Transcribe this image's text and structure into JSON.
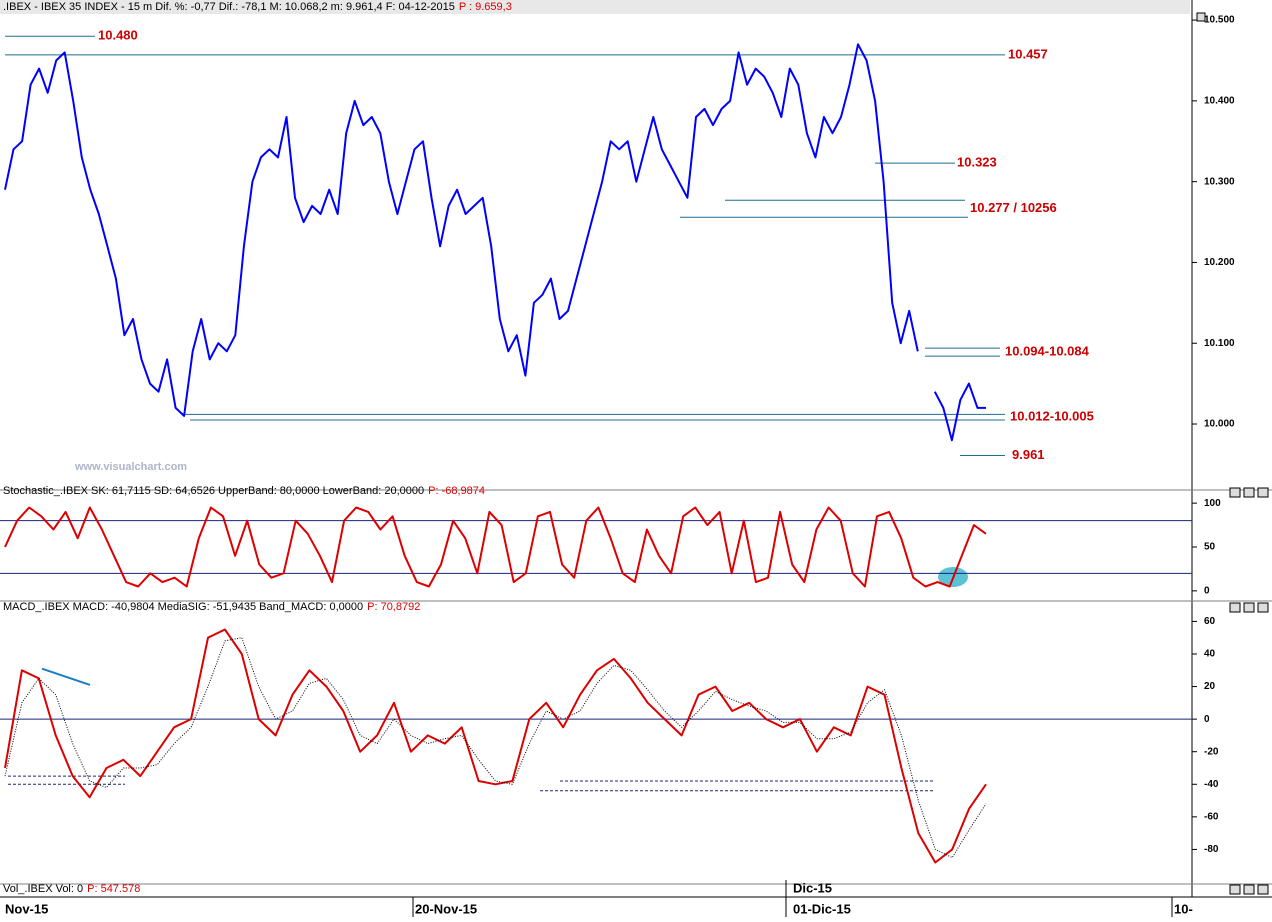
{
  "chart_data": [
    {
      "type": "line",
      "title": ".IBEX - IBEX 35 INDEX - 15 m  Dif. %: -0,77  Dif.: -78,1  M: 10.068,2  m: 9.961,4  F: 04-12-2015",
      "title_value": "P : 9.659,3",
      "ylim": [
        9927,
        10510
      ],
      "yticks": [
        {
          "value": 10000,
          "label": "10.000"
        },
        {
          "value": 10100,
          "label": "10.100"
        },
        {
          "value": 10200,
          "label": "10.200"
        },
        {
          "value": 10300,
          "label": "10.300"
        },
        {
          "value": 10400,
          "label": "10.400"
        },
        {
          "value": 10500,
          "label": "10.500"
        }
      ],
      "series": [
        {
          "color": "#0000ff",
          "values": [
            10290,
            10340,
            10350,
            10420,
            10440,
            10410,
            10450,
            10460,
            10400,
            10330,
            10290,
            10260,
            10220,
            10180,
            10110,
            10130,
            10080,
            10050,
            10040,
            10080,
            10020,
            10010,
            10090,
            10130,
            10080,
            10100,
            10090,
            10110,
            10220,
            10300,
            10330,
            10340,
            10330,
            10380,
            10280,
            10250,
            10270,
            10260,
            10290,
            10260,
            10360,
            10400,
            10370,
            10380,
            10360,
            10300,
            10260,
            10300,
            10340,
            10350,
            10280,
            10220,
            10270,
            10290,
            10260,
            10270,
            10280,
            10220,
            10130,
            10090,
            10110,
            10060,
            10150,
            10160,
            10180,
            10130,
            10140,
            10180,
            10220,
            10260,
            10300,
            10350,
            10340,
            10350,
            10300,
            10340,
            10380,
            10340,
            10320,
            10300,
            10280,
            10380,
            10390,
            10370,
            10390,
            10400,
            10460,
            10420,
            10440,
            10430,
            10410,
            10380,
            10440,
            10420,
            10360,
            10330,
            10380,
            10360,
            10380,
            10420,
            10470,
            10450,
            10400,
            10300,
            10150,
            10100,
            10140,
            10090,
            null,
            10040,
            10020,
            9980,
            10030,
            10050,
            10020,
            10020
          ]
        }
      ],
      "annotations": [
        {
          "label": "10.480",
          "values": [
            10480
          ]
        },
        {
          "label": "10.457",
          "values": [
            10457
          ]
        },
        {
          "label": "10.323",
          "values": [
            10323
          ]
        },
        {
          "label": "10.277 / 10256",
          "values": [
            10277,
            10256
          ]
        },
        {
          "label": "10.094-10.084",
          "values": [
            10094,
            10084
          ]
        },
        {
          "label": "10.012-10.005",
          "values": [
            10012,
            10005
          ]
        },
        {
          "label": "9.961",
          "values": [
            9961
          ]
        }
      ],
      "annotation_color": "#1f6f8f",
      "watermark": "www.visualchart.com"
    },
    {
      "type": "line",
      "title": "Stochastic_.IBEX SK: 61,7115  SD: 64,6526  UpperBand: 80,0000  LowerBand: 20,0000",
      "title_value": "P: -68,9874",
      "ylim": [
        -7,
        107
      ],
      "yticks": [
        0,
        50,
        100
      ],
      "hlines": [
        80,
        20
      ],
      "series": [
        {
          "color": "#dd0000",
          "values": [
            50,
            80,
            95,
            85,
            70,
            90,
            60,
            95,
            70,
            40,
            10,
            5,
            20,
            10,
            15,
            5,
            60,
            95,
            85,
            40,
            80,
            30,
            15,
            20,
            80,
            65,
            40,
            10,
            80,
            95,
            90,
            70,
            85,
            40,
            10,
            5,
            30,
            80,
            60,
            20,
            90,
            75,
            10,
            20,
            85,
            90,
            30,
            15,
            80,
            95,
            60,
            20,
            10,
            70,
            40,
            20,
            85,
            95,
            75,
            90,
            20,
            80,
            10,
            15,
            90,
            30,
            10,
            70,
            95,
            80,
            20,
            5,
            85,
            90,
            60,
            15,
            5,
            10,
            5,
            40,
            75,
            65
          ]
        }
      ]
    },
    {
      "type": "line",
      "title": "MACD_.IBEX MACD: -40,9804  MediaSIG: -51,9435  Band_MACD: 0,0000",
      "title_value": "P: 70,8792",
      "ylim": [
        -100,
        67
      ],
      "yticks": [
        -80,
        -60,
        -40,
        -20,
        0,
        20,
        40,
        60
      ],
      "hlines": [
        0
      ],
      "dashed_levels": [
        -35,
        -40,
        -38,
        -44
      ],
      "trend_line": [
        31,
        21
      ],
      "series": [
        {
          "color": "#dd0000",
          "style": "solid",
          "values": [
            -30,
            30,
            25,
            -10,
            -35,
            -48,
            -30,
            -25,
            -35,
            -20,
            -5,
            0,
            50,
            55,
            40,
            0,
            -10,
            15,
            30,
            20,
            5,
            -20,
            -10,
            10,
            -20,
            -10,
            -15,
            -5,
            -38,
            -40,
            -38,
            0,
            10,
            -5,
            15,
            30,
            37,
            25,
            10,
            0,
            -10,
            15,
            20,
            5,
            10,
            0,
            -5,
            0,
            -20,
            -5,
            -10,
            20,
            15,
            -30,
            -70,
            -88,
            -80,
            -55,
            -40
          ]
        },
        {
          "color": "#000000",
          "style": "dotted",
          "values": [
            -35,
            10,
            25,
            15,
            -15,
            -38,
            -42,
            -30,
            -30,
            -28,
            -15,
            -5,
            20,
            48,
            50,
            20,
            0,
            5,
            22,
            25,
            12,
            -10,
            -15,
            0,
            -10,
            -15,
            -12,
            -10,
            -25,
            -38,
            -40,
            -15,
            5,
            0,
            5,
            22,
            33,
            30,
            18,
            5,
            -5,
            5,
            17,
            12,
            8,
            5,
            -2,
            -2,
            -12,
            -12,
            -8,
            10,
            18,
            -10,
            -50,
            -80,
            -85,
            -68,
            -52
          ]
        }
      ]
    }
  ],
  "volume_pane": {
    "title": "Vol_.IBEX Vol: 0",
    "title_value": "P: 547.578"
  },
  "x_axis_labels": [
    "Nov-15",
    "20-Nov-15",
    "01-Dic-15",
    "10-"
  ],
  "x_axis_month": "Dic-15"
}
